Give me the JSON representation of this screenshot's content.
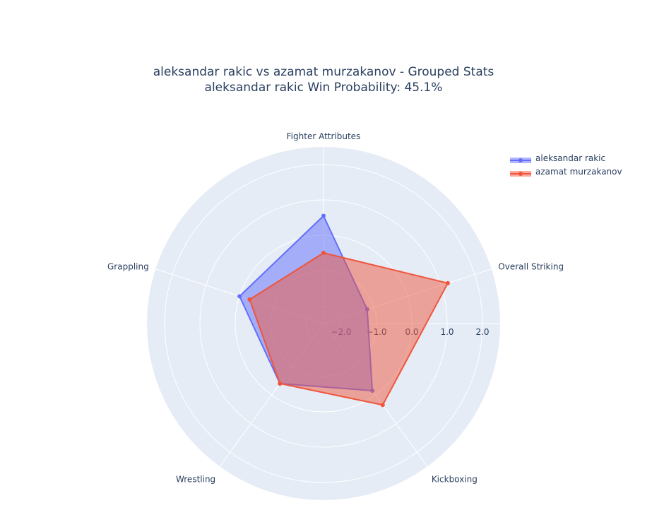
{
  "chart_data": {
    "type": "radar",
    "title_line1": "aleksandar rakic vs azamat murzakanov - Grouped Stats",
    "title_line2": "aleksandar rakic Win Probability: 45.1%",
    "categories": [
      "Fighter Attributes",
      "Overall Striking",
      "Kickboxing",
      "Wrestling",
      "Grappling"
    ],
    "radial_range": [
      -2.5,
      2.5
    ],
    "radial_ticks": [
      "−2.0",
      "−1.0",
      "0.0",
      "1.0",
      "2.0"
    ],
    "radial_tick_values": [
      -2,
      -1,
      0,
      1,
      2
    ],
    "series": [
      {
        "name": "aleksandar rakic",
        "color": "#636efa",
        "fill": "rgba(99,110,250,0.5)",
        "values": [
          0.55,
          -1.2,
          -0.15,
          -0.4,
          0.0
        ]
      },
      {
        "name": "azamat murzakanov",
        "color": "#ef553b",
        "fill": "rgba(239,85,59,0.5)",
        "values": [
          -0.5,
          1.2,
          0.35,
          -0.4,
          -0.3
        ]
      }
    ],
    "grid": true,
    "legend_position": "top-right"
  }
}
